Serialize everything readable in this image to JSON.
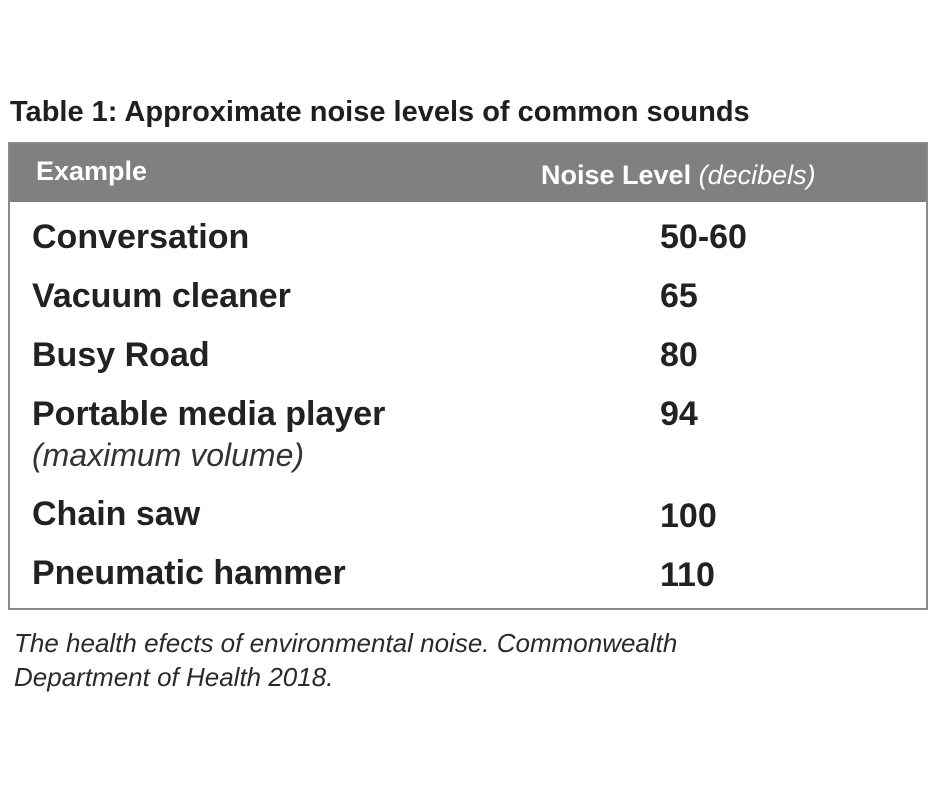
{
  "caption": "Table 1:  Approximate noise levels of common sounds",
  "table": {
    "header": {
      "example": "Example",
      "level_main": "Noise Level",
      "level_unit": "(decibels)"
    },
    "rows": [
      {
        "label": "Conversation",
        "sublabel": "",
        "value": "50-60"
      },
      {
        "label": "Vacuum cleaner",
        "sublabel": "",
        "value": "65"
      },
      {
        "label": "Busy Road",
        "sublabel": "",
        "value": "80"
      },
      {
        "label": "Portable media player",
        "sublabel": "(maximum volume)",
        "value": "94"
      },
      {
        "label": "Chain saw",
        "sublabel": "",
        "value": "100"
      },
      {
        "label": "Pneumatic hammer",
        "sublabel": "",
        "value": "110"
      }
    ]
  },
  "source": {
    "line1": "The health efects of environmental noise. Commonwealth",
    "line2": "Department of Health 2018."
  }
}
